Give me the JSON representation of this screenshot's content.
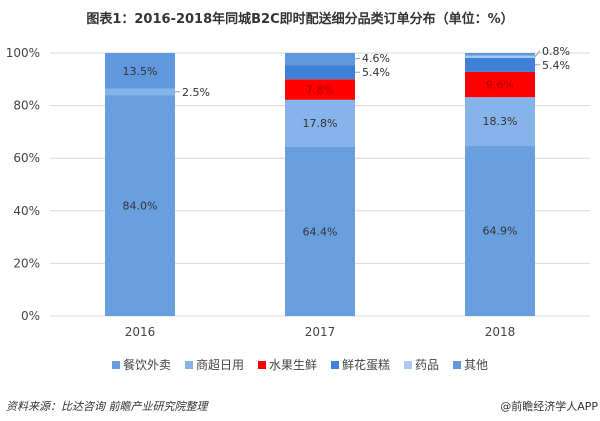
{
  "chart_data": {
    "type": "bar",
    "stacked": true,
    "title": "图表1：2016-2018年同城B2C即时配送细分品类订单分布（单位：%）",
    "categories": [
      "2016",
      "2017",
      "2018"
    ],
    "ylim": [
      0,
      100
    ],
    "yticks": [
      "0%",
      "20%",
      "40%",
      "60%",
      "80%",
      "100%"
    ],
    "series": [
      {
        "name": "餐饮外卖",
        "color": "#6a9fdf",
        "values": [
          84.0,
          64.4,
          64.9
        ],
        "labels": [
          "84.0%",
          "64.4%",
          "64.9%"
        ]
      },
      {
        "name": "商超日用",
        "color": "#86b4ea",
        "values": [
          2.5,
          17.8,
          18.3
        ],
        "labels": [
          "2.5%",
          "17.8%",
          "18.3%"
        ]
      },
      {
        "name": "水果生鲜",
        "color": "#ff0000",
        "values": [
          0,
          7.8,
          9.6
        ],
        "labels": [
          "",
          "7.8%",
          "9.6%"
        ]
      },
      {
        "name": "鲜花蛋糕",
        "color": "#3f80d8",
        "values": [
          0,
          5.4,
          5.4
        ],
        "labels": [
          "",
          "5.4%",
          "5.4%"
        ]
      },
      {
        "name": "药品",
        "color": "#abcbf0",
        "values": [
          0,
          0,
          0.8
        ],
        "labels": [
          "",
          "",
          "0.8%"
        ]
      },
      {
        "name": "其他",
        "color": "#5f98dc",
        "values": [
          13.5,
          4.6,
          1.0
        ],
        "labels": [
          "13.5%",
          "4.6%",
          ""
        ]
      }
    ],
    "legend": "bottom"
  },
  "footer": {
    "source": "资料来源：比达咨询 前瞻产业研究院整理",
    "credit": "@前瞻经济学人APP"
  }
}
